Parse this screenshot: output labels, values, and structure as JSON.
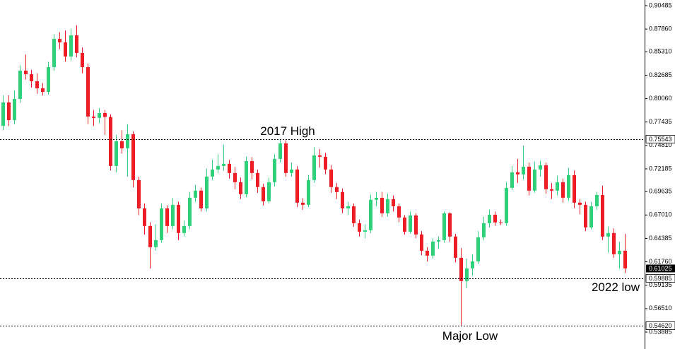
{
  "chart_data": {
    "type": "candlestick",
    "up_color": "#2fd27a",
    "down_color": "#ee1c25",
    "ylim": [
      0.53885,
      0.90485
    ],
    "yticks": [
      0.90485,
      {
        "value": 0.8786,
        "label": "0.87860"
      },
      {
        "value": 0.8531,
        "label": "0.85310"
      },
      0.82685,
      {
        "value": 0.8006,
        "label": "0.80060"
      },
      0.77435,
      {
        "value": 0.7481,
        "label": "0.74810"
      },
      0.72185,
      0.69635,
      {
        "value": 0.6701,
        "label": "0.67010"
      },
      0.64385,
      {
        "value": 0.6176,
        "label": "0.61760"
      },
      0.59135,
      {
        "value": 0.5651,
        "label": "0.56510"
      },
      0.53885
    ],
    "levels": [
      {
        "value": 0.75543,
        "text": "2017 High"
      },
      {
        "value": 0.59885,
        "text": "2022 low"
      },
      {
        "value": 0.5462,
        "label": "0.54620",
        "text": "Major Low"
      }
    ],
    "last_price": 0.61025,
    "open": [
      0.77,
      0.7963,
      0.7765,
      0.8003,
      0.832,
      0.828,
      0.8201,
      0.8122,
      0.8082,
      0.8359,
      0.8676,
      0.8637,
      0.8478,
      0.8716,
      0.8518,
      0.8359,
      0.7805,
      0.779,
      0.7845,
      0.78,
      0.7251,
      0.7528,
      0.7449,
      0.7607,
      0.7093,
      0.6775,
      0.6578,
      0.634,
      0.6419,
      0.6775,
      0.6578,
      0.6815,
      0.6499,
      0.6578,
      0.6895,
      0.6974,
      0.6775,
      0.7132,
      0.7211,
      0.7251,
      0.7275,
      0.7172,
      0.7069,
      0.6934,
      0.7306,
      0.7172,
      0.7014,
      0.6855,
      0.7069,
      0.733,
      0.7504,
      0.7172,
      0.7211,
      0.6839,
      0.6815,
      0.7093,
      0.737,
      0.7354,
      0.7211,
      0.7014,
      0.6958,
      0.6775,
      0.6799,
      0.6609,
      0.6514,
      0.653,
      0.6871,
      0.6894,
      0.672,
      0.6879,
      0.6799,
      0.6673,
      0.6514,
      0.6696,
      0.6483,
      0.63,
      0.6245,
      0.6403,
      0.6419,
      0.672,
      0.6459,
      0.6221,
      0.596,
      0.6102,
      0.6181,
      0.6451,
      0.6609,
      0.6704,
      0.6617,
      0.6609,
      0.7005,
      0.718,
      0.7156,
      0.7243,
      0.6974,
      0.7211,
      0.7259,
      0.699,
      0.6974,
      0.7069,
      0.6895,
      0.7148,
      0.6839,
      0.6815,
      0.6562,
      0.6799,
      0.6926,
      0.6459,
      0.6499,
      0.6261,
      0.63
    ],
    "high": [
      0.8043,
      0.8043,
      0.81,
      0.838,
      0.85,
      0.833,
      0.829,
      0.818,
      0.842,
      0.873,
      0.875,
      0.877,
      0.879,
      0.883,
      0.858,
      0.84,
      0.788,
      0.79,
      0.788,
      0.783,
      0.76,
      0.765,
      0.772,
      0.764,
      0.713,
      0.683,
      0.662,
      0.66,
      0.683,
      0.681,
      0.689,
      0.685,
      0.664,
      0.696,
      0.704,
      0.701,
      0.722,
      0.732,
      0.738,
      0.749,
      0.732,
      0.724,
      0.712,
      0.736,
      0.735,
      0.721,
      0.705,
      0.712,
      0.738,
      0.7554,
      0.754,
      0.729,
      0.725,
      0.689,
      0.715,
      0.746,
      0.744,
      0.74,
      0.726,
      0.706,
      0.7,
      0.685,
      0.683,
      0.665,
      0.66,
      0.693,
      0.696,
      0.696,
      0.694,
      0.692,
      0.683,
      0.67,
      0.674,
      0.672,
      0.652,
      0.634,
      0.644,
      0.646,
      0.674,
      0.673,
      0.649,
      0.633,
      0.621,
      0.626,
      0.652,
      0.668,
      0.676,
      0.674,
      0.665,
      0.707,
      0.725,
      0.733,
      0.748,
      0.729,
      0.73,
      0.731,
      0.729,
      0.706,
      0.714,
      0.711,
      0.723,
      0.72,
      0.688,
      0.685,
      0.685,
      0.696,
      0.703,
      0.657,
      0.655,
      0.64,
      0.649
    ],
    "low": [
      0.765,
      0.77,
      0.772,
      0.796,
      0.822,
      0.813,
      0.806,
      0.804,
      0.805,
      0.832,
      0.856,
      0.842,
      0.843,
      0.847,
      0.829,
      0.772,
      0.77,
      0.773,
      0.76,
      0.72,
      0.718,
      0.739,
      0.713,
      0.701,
      0.67,
      0.648,
      0.61,
      0.63,
      0.639,
      0.65,
      0.654,
      0.642,
      0.646,
      0.654,
      0.685,
      0.674,
      0.674,
      0.709,
      0.717,
      0.72,
      0.711,
      0.699,
      0.688,
      0.69,
      0.71,
      0.695,
      0.681,
      0.683,
      0.702,
      0.729,
      0.713,
      0.713,
      0.679,
      0.676,
      0.679,
      0.706,
      0.723,
      0.716,
      0.695,
      0.688,
      0.672,
      0.67,
      0.657,
      0.646,
      0.644,
      0.65,
      0.68,
      0.668,
      0.668,
      0.674,
      0.662,
      0.648,
      0.649,
      0.644,
      0.625,
      0.618,
      0.621,
      0.632,
      0.639,
      0.64,
      0.617,
      0.5462,
      0.588,
      0.602,
      0.615,
      0.642,
      0.656,
      0.658,
      0.659,
      0.658,
      0.698,
      0.706,
      0.71,
      0.692,
      0.695,
      0.713,
      0.694,
      0.688,
      0.692,
      0.684,
      0.686,
      0.678,
      0.671,
      0.652,
      0.654,
      0.676,
      0.642,
      0.628,
      0.622,
      0.61,
      0.605
    ],
    "close": [
      0.7963,
      0.7765,
      0.8003,
      0.832,
      0.828,
      0.8201,
      0.8122,
      0.8082,
      0.8359,
      0.8676,
      0.8637,
      0.8478,
      0.8716,
      0.8518,
      0.8359,
      0.7805,
      0.779,
      0.7845,
      0.78,
      0.7251,
      0.7528,
      0.7449,
      0.7607,
      0.7093,
      0.6775,
      0.6578,
      0.634,
      0.6419,
      0.6775,
      0.6578,
      0.6815,
      0.6499,
      0.6578,
      0.6895,
      0.6974,
      0.6775,
      0.7132,
      0.7211,
      0.7251,
      0.7275,
      0.7172,
      0.7069,
      0.6934,
      0.7306,
      0.7172,
      0.7014,
      0.6855,
      0.7069,
      0.733,
      0.7504,
      0.7172,
      0.7211,
      0.6839,
      0.6815,
      0.7093,
      0.737,
      0.7354,
      0.7211,
      0.7014,
      0.6958,
      0.6775,
      0.6799,
      0.6609,
      0.6514,
      0.653,
      0.6871,
      0.6894,
      0.672,
      0.6879,
      0.6799,
      0.6673,
      0.6514,
      0.6696,
      0.6483,
      0.63,
      0.6245,
      0.6403,
      0.6419,
      0.672,
      0.6459,
      0.6221,
      0.596,
      0.6102,
      0.6181,
      0.6451,
      0.6609,
      0.6704,
      0.6617,
      0.6609,
      0.7005,
      0.718,
      0.7156,
      0.7243,
      0.6974,
      0.7211,
      0.7259,
      0.699,
      0.6974,
      0.7069,
      0.6895,
      0.7148,
      0.6839,
      0.6815,
      0.6562,
      0.6799,
      0.6926,
      0.6459,
      0.6499,
      0.6261,
      0.63,
      0.6102
    ]
  }
}
